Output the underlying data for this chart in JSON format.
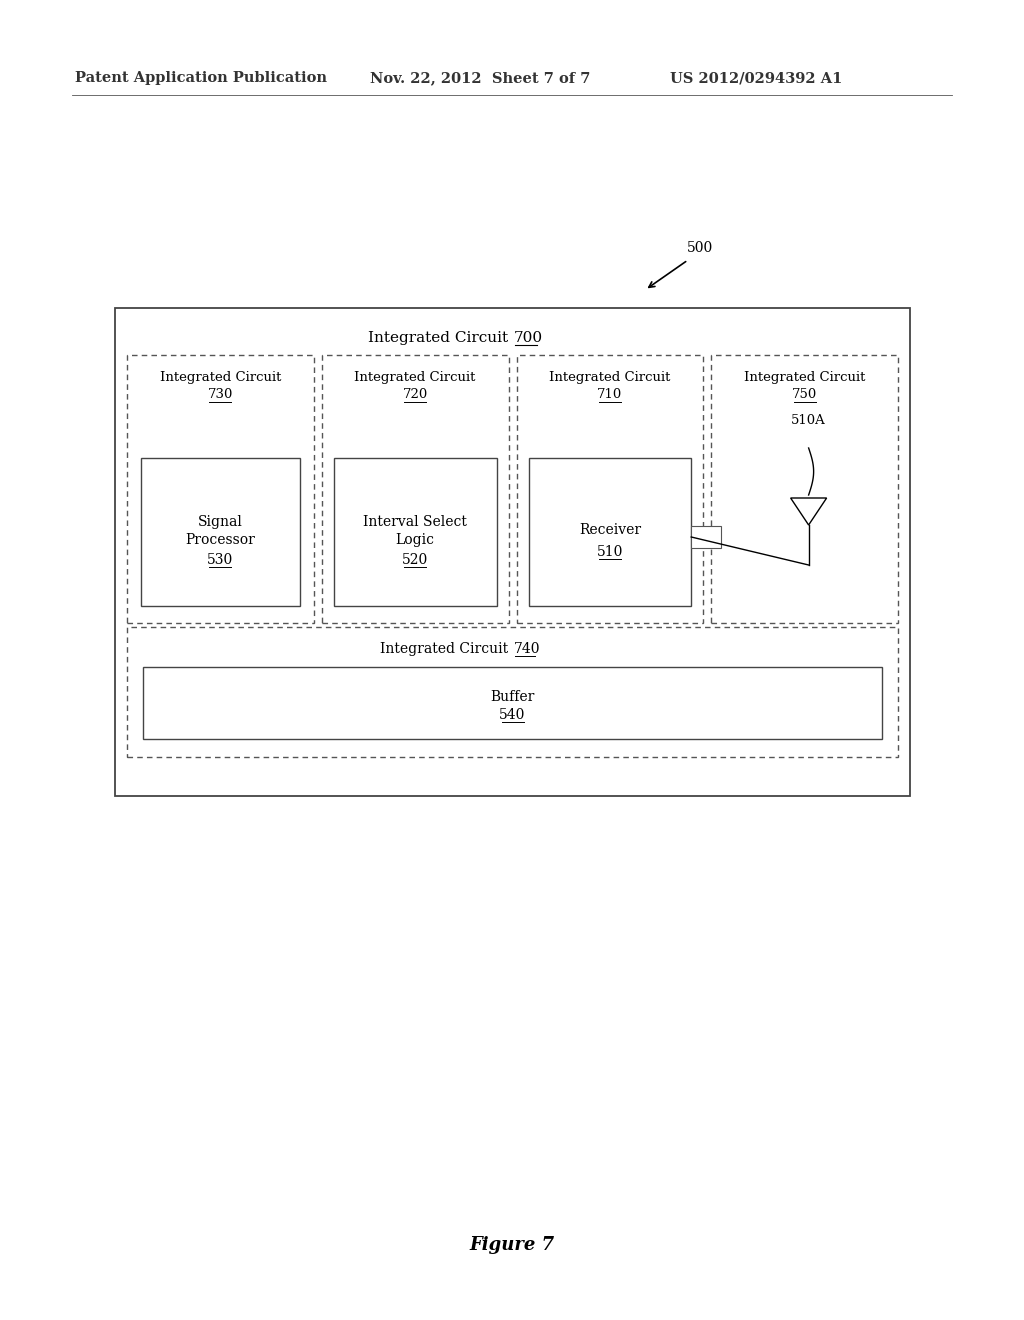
{
  "bg_color": "#ffffff",
  "header_left": "Patent Application Publication",
  "header_mid": "Nov. 22, 2012  Sheet 7 of 7",
  "header_right": "US 2012/0294392 A1",
  "figure_label": "Figure 7",
  "label_500": "500",
  "label_510A": "510A",
  "outer_box_label": "Integrated Circuit 700",
  "ic730_label": "Integrated Circuit\n730",
  "ic720_label": "Integrated Circuit\n720",
  "ic710_label": "Integrated Circuit\n710",
  "ic750_label": "Integrated Circuit\n750",
  "ic740_label": "Integrated Circuit 740",
  "sp_line1": "Signal",
  "sp_line2": "Processor",
  "sp_num": "530",
  "isl_line1": "Interval Select",
  "isl_line2": "Logic",
  "isl_num": "520",
  "recv_line1": "Receiver",
  "recv_num": "510",
  "buf_line1": "Buffer",
  "buf_num": "540"
}
